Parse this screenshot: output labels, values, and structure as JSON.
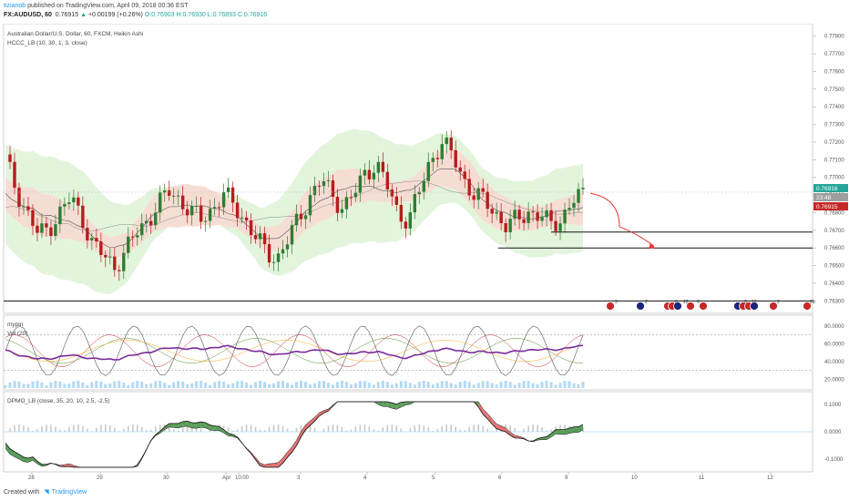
{
  "header": {
    "author": "tizianob",
    "published": "published on TradingView.com, April 09, 2018 00:36 EST",
    "symbol": "FX:AUDUSD, 60",
    "last": "0.76915",
    "change": "+0.00199 (+0.26%)",
    "open": "O:0.76903",
    "high": "H:0.76930",
    "low": "L:0.76893",
    "close": "C:0.76916"
  },
  "main_pane": {
    "title": "Australian Dollar/U.S. Dollar, 60, FXCM, Heikin Ashi",
    "indicator": "HCCC_LB (10, 30, 1, 3, close)",
    "price_label": "0.76916",
    "countdown_label": "23:48",
    "bid_label": "0.76915",
    "y_ticks": [
      "0.77800",
      "0.77700",
      "0.77600",
      "0.77500",
      "0.77400",
      "0.77300",
      "0.77200",
      "0.77100",
      "0.77000",
      "0.76900",
      "0.76800",
      "0.76700",
      "0.76600",
      "0.76500",
      "0.76400",
      "0.76300"
    ],
    "event_counts": [
      "3",
      "2",
      "8",
      "22",
      "6",
      "5",
      "12",
      "2",
      "26"
    ]
  },
  "pane2": {
    "label1": "mypin",
    "label2": "Vol (20)",
    "y_ticks": [
      "80.0000",
      "60.0000",
      "40.0000",
      "20.0000"
    ]
  },
  "pane3": {
    "label": "DPMO_LB (close, 35, 20, 10, 2.5, -2.5)",
    "y_ticks": [
      "0.1000",
      "0.0000",
      "-0.1000"
    ]
  },
  "x_axis": {
    "ticks": [
      "28",
      "29",
      "30",
      "Apr",
      "10:00",
      "3",
      "4",
      "5",
      "6",
      "9",
      "10",
      "11",
      "12"
    ]
  },
  "footer": {
    "created": "Created with",
    "brand": "TradingView"
  },
  "colors": {
    "bull": "#2e7d32",
    "bear": "#b71c1c",
    "band_green": "#e3f4dc",
    "band_red": "#f6ddd4",
    "purple": "#7b2a9c",
    "accent": "#2196f3"
  },
  "chart_data": {
    "type": "candlestick",
    "title": "Australian Dollar/U.S. Dollar, 60, FXCM, Heikin Ashi",
    "ylim": [
      0.7625,
      0.7785
    ],
    "horizontal_levels": [
      0.7669,
      0.766,
      0.763
    ],
    "last_price": 0.76916,
    "close_path_points": [
      [
        0,
        0.771
      ],
      [
        6,
        0.7693
      ],
      [
        12,
        0.768
      ],
      [
        18,
        0.7667
      ],
      [
        24,
        0.7672
      ],
      [
        30,
        0.768
      ],
      [
        36,
        0.7688
      ],
      [
        42,
        0.7678
      ],
      [
        48,
        0.7662
      ],
      [
        54,
        0.7655
      ],
      [
        60,
        0.765
      ],
      [
        66,
        0.7658
      ],
      [
        72,
        0.7668
      ],
      [
        78,
        0.7676
      ],
      [
        84,
        0.7684
      ],
      [
        90,
        0.7692
      ],
      [
        96,
        0.7688
      ],
      [
        102,
        0.768
      ],
      [
        108,
        0.7676
      ],
      [
        114,
        0.7683
      ],
      [
        120,
        0.769
      ],
      [
        126,
        0.7684
      ],
      [
        132,
        0.7676
      ],
      [
        138,
        0.7665
      ],
      [
        144,
        0.7657
      ],
      [
        150,
        0.7655
      ],
      [
        156,
        0.7665
      ],
      [
        162,
        0.7678
      ],
      [
        168,
        0.769
      ],
      [
        174,
        0.7698
      ],
      [
        180,
        0.769
      ],
      [
        186,
        0.7683
      ],
      [
        192,
        0.769
      ],
      [
        198,
        0.7703
      ],
      [
        204,
        0.7708
      ],
      [
        210,
        0.7695
      ],
      [
        216,
        0.768
      ],
      [
        222,
        0.7676
      ],
      [
        228,
        0.7692
      ],
      [
        234,
        0.771
      ],
      [
        240,
        0.772
      ],
      [
        246,
        0.7712
      ],
      [
        252,
        0.77
      ],
      [
        258,
        0.769
      ],
      [
        264,
        0.7686
      ],
      [
        270,
        0.768
      ],
      [
        276,
        0.7672
      ],
      [
        282,
        0.7676
      ],
      [
        288,
        0.7681
      ],
      [
        294,
        0.7678
      ],
      [
        300,
        0.7673
      ],
      [
        306,
        0.7677
      ],
      [
        312,
        0.7686
      ],
      [
        318,
        0.769
      ]
    ]
  }
}
